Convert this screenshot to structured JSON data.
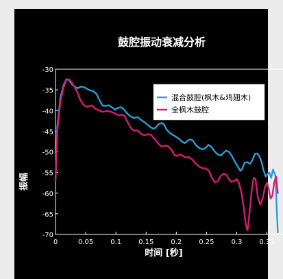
{
  "chart_data": {
    "type": "line",
    "title": "鼓腔振动衰减分析",
    "xlabel": "时间 [秒]",
    "ylabel": "振幅",
    "xlim": [
      0,
      0.38
    ],
    "ylim": [
      -70,
      -30
    ],
    "x_ticks": [
      0,
      0.05,
      0.1,
      0.15,
      0.2,
      0.25,
      0.3,
      0.35
    ],
    "x_tick_labels": [
      "0",
      "0.05",
      "0.1",
      "0.15",
      "0.2",
      "0.25",
      "0.3",
      "0.35"
    ],
    "y_ticks": [
      -70,
      -65,
      -60,
      -55,
      -50,
      -45,
      -40,
      -35,
      -30
    ],
    "y_tick_labels": [
      "-70",
      "-65",
      "-60",
      "-55",
      "-50",
      "-45",
      "-40",
      "-35",
      "-30"
    ],
    "grid": false,
    "legend_position": "top-right",
    "series": [
      {
        "name": "混合鼓腔(枫木&鸡翅木)",
        "color": "#2a9fd6",
        "points": [
          [
            0,
            -57
          ],
          [
            0.003,
            -44
          ],
          [
            0.008,
            -37
          ],
          [
            0.013,
            -34
          ],
          [
            0.018,
            -32.4
          ],
          [
            0.022,
            -32.6
          ],
          [
            0.027,
            -33.6
          ],
          [
            0.032,
            -34.3
          ],
          [
            0.037,
            -34.6
          ],
          [
            0.042,
            -34.2
          ],
          [
            0.048,
            -34.4
          ],
          [
            0.055,
            -35.0
          ],
          [
            0.062,
            -35.3
          ],
          [
            0.068,
            -36.0
          ],
          [
            0.074,
            -37.8
          ],
          [
            0.078,
            -38.8
          ],
          [
            0.083,
            -38.9
          ],
          [
            0.088,
            -38.7
          ],
          [
            0.094,
            -39.3
          ],
          [
            0.099,
            -39.8
          ],
          [
            0.103,
            -39.4
          ],
          [
            0.108,
            -39.2
          ],
          [
            0.112,
            -39.5
          ],
          [
            0.118,
            -40.6
          ],
          [
            0.124,
            -41.4
          ],
          [
            0.13,
            -41.8
          ],
          [
            0.136,
            -41.6
          ],
          [
            0.141,
            -42.2
          ],
          [
            0.147,
            -42.8
          ],
          [
            0.152,
            -43.4
          ],
          [
            0.157,
            -44.0
          ],
          [
            0.162,
            -44.4
          ],
          [
            0.166,
            -44.1
          ],
          [
            0.171,
            -43.3
          ],
          [
            0.176,
            -43.0
          ],
          [
            0.18,
            -43.5
          ],
          [
            0.184,
            -44.6
          ],
          [
            0.189,
            -45.4
          ],
          [
            0.194,
            -45.9
          ],
          [
            0.199,
            -46.3
          ],
          [
            0.204,
            -46.8
          ],
          [
            0.21,
            -47.6
          ],
          [
            0.214,
            -47.9
          ],
          [
            0.218,
            -47.4
          ],
          [
            0.222,
            -47.0
          ],
          [
            0.227,
            -47.2
          ],
          [
            0.232,
            -48.3
          ],
          [
            0.238,
            -49.1
          ],
          [
            0.244,
            -49.4
          ],
          [
            0.249,
            -49.0
          ],
          [
            0.253,
            -48.3
          ],
          [
            0.258,
            -48.8
          ],
          [
            0.263,
            -49.8
          ],
          [
            0.268,
            -50.6
          ],
          [
            0.274,
            -50.9
          ],
          [
            0.279,
            -50.1
          ],
          [
            0.283,
            -49.7
          ],
          [
            0.288,
            -50.1
          ],
          [
            0.292,
            -51.0
          ],
          [
            0.297,
            -52.4
          ],
          [
            0.302,
            -53.6
          ],
          [
            0.306,
            -54.6
          ],
          [
            0.309,
            -54.2
          ],
          [
            0.313,
            -52.6
          ],
          [
            0.318,
            -52.5
          ],
          [
            0.322,
            -52.9
          ],
          [
            0.326,
            -52.0
          ],
          [
            0.33,
            -50.5
          ],
          [
            0.334,
            -50.4
          ],
          [
            0.338,
            -51.2
          ],
          [
            0.341,
            -52.4
          ],
          [
            0.344,
            -54.3
          ],
          [
            0.348,
            -56.0
          ],
          [
            0.351,
            -55.4
          ],
          [
            0.354,
            -55.0
          ],
          [
            0.357,
            -56.3
          ],
          [
            0.36,
            -54.3
          ],
          [
            0.364,
            -55.7
          ],
          [
            0.366,
            -63.0
          ],
          [
            0.368,
            -69.5
          ]
        ]
      },
      {
        "name": "全枫木鼓腔",
        "color": "#d81b72",
        "points": [
          [
            0,
            -57
          ],
          [
            0.003,
            -45
          ],
          [
            0.008,
            -38
          ],
          [
            0.013,
            -34.5
          ],
          [
            0.018,
            -32.6
          ],
          [
            0.022,
            -32.4
          ],
          [
            0.026,
            -33.0
          ],
          [
            0.031,
            -34.2
          ],
          [
            0.036,
            -35.5
          ],
          [
            0.041,
            -37.4
          ],
          [
            0.046,
            -38.6
          ],
          [
            0.051,
            -39.1
          ],
          [
            0.056,
            -38.9
          ],
          [
            0.061,
            -38.8
          ],
          [
            0.066,
            -39.6
          ],
          [
            0.071,
            -39.9
          ],
          [
            0.078,
            -40.3
          ],
          [
            0.085,
            -40.1
          ],
          [
            0.09,
            -40.2
          ],
          [
            0.097,
            -40.6
          ],
          [
            0.104,
            -41.2
          ],
          [
            0.109,
            -41.0
          ],
          [
            0.114,
            -41.3
          ],
          [
            0.12,
            -43.0
          ],
          [
            0.126,
            -44.5
          ],
          [
            0.131,
            -44.9
          ],
          [
            0.136,
            -44.8
          ],
          [
            0.142,
            -45.7
          ],
          [
            0.147,
            -46.0
          ],
          [
            0.153,
            -45.7
          ],
          [
            0.158,
            -45.9
          ],
          [
            0.164,
            -46.9
          ],
          [
            0.17,
            -48.0
          ],
          [
            0.175,
            -48.7
          ],
          [
            0.181,
            -48.5
          ],
          [
            0.186,
            -48.6
          ],
          [
            0.192,
            -49.5
          ],
          [
            0.197,
            -50.8
          ],
          [
            0.202,
            -51.0
          ],
          [
            0.206,
            -50.6
          ],
          [
            0.21,
            -50.9
          ],
          [
            0.215,
            -51.4
          ],
          [
            0.22,
            -51.2
          ],
          [
            0.226,
            -51.8
          ],
          [
            0.232,
            -52.8
          ],
          [
            0.238,
            -53.6
          ],
          [
            0.244,
            -54.0
          ],
          [
            0.249,
            -54.0
          ],
          [
            0.254,
            -54.6
          ],
          [
            0.259,
            -56.3
          ],
          [
            0.264,
            -57.4
          ],
          [
            0.269,
            -57.1
          ],
          [
            0.273,
            -55.9
          ],
          [
            0.278,
            -55.3
          ],
          [
            0.283,
            -55.6
          ],
          [
            0.287,
            -56.6
          ],
          [
            0.291,
            -57.3
          ],
          [
            0.296,
            -57.0
          ],
          [
            0.3,
            -56.6
          ],
          [
            0.304,
            -57.7
          ],
          [
            0.308,
            -60.0
          ],
          [
            0.312,
            -64.0
          ],
          [
            0.315,
            -67.6
          ],
          [
            0.318,
            -69.0
          ],
          [
            0.321,
            -65.0
          ],
          [
            0.325,
            -59.0
          ],
          [
            0.328,
            -56.3
          ],
          [
            0.331,
            -56.5
          ],
          [
            0.335,
            -61.0
          ],
          [
            0.339,
            -62.8
          ],
          [
            0.343,
            -61.2
          ],
          [
            0.347,
            -58.4
          ],
          [
            0.35,
            -57.4
          ],
          [
            0.353,
            -59.0
          ],
          [
            0.356,
            -61.3
          ],
          [
            0.359,
            -60.6
          ],
          [
            0.362,
            -57.5
          ],
          [
            0.365,
            -56.0
          ],
          [
            0.368,
            -60.0
          ]
        ]
      }
    ]
  }
}
